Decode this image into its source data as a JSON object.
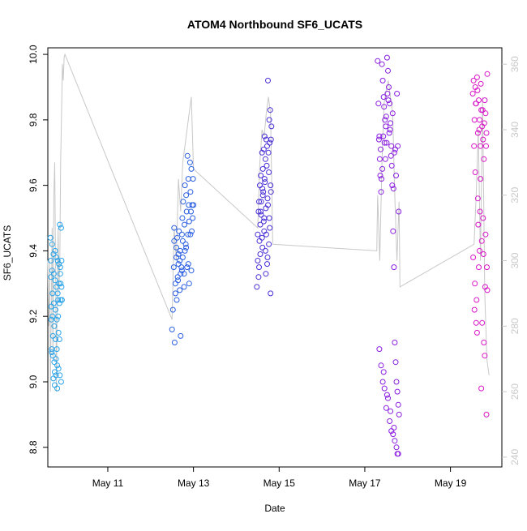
{
  "chart_data": {
    "type": "scatter",
    "title": "ATOM4 Northbound SF6_UCATS",
    "xlabel": "Date",
    "ylabel": "SF6_UCATS",
    "x_ticks": [
      "May 11",
      "May 13",
      "May 15",
      "May 17",
      "May 19"
    ],
    "x_tick_values": [
      11,
      13,
      15,
      17,
      19
    ],
    "xlim": [
      9.6,
      20.2
    ],
    "ylim": [
      8.74,
      10.02
    ],
    "y_ticks": [
      8.8,
      9.0,
      9.2,
      9.4,
      9.6,
      9.8,
      10.0
    ],
    "y_tick_labels": [
      "8.8",
      "9.0",
      "9.2",
      "9.4",
      "9.6",
      "9.8",
      "10.0"
    ],
    "y2_ticks": [
      240,
      260,
      280,
      300,
      320,
      340,
      360
    ],
    "y2_tick_labels": [
      "240",
      "260",
      "280",
      "300",
      "320",
      "340",
      "360"
    ],
    "y2lim": [
      237,
      365
    ],
    "y2_color": "#c8c8c8",
    "line_color": "#c8c8c8",
    "grid": false,
    "series": [
      {
        "color": "#29a3e8",
        "x": [
          9.66,
          9.67,
          9.67,
          9.68,
          9.68,
          9.69,
          9.69,
          9.7,
          9.7,
          9.71,
          9.71,
          9.72,
          9.72,
          9.73,
          9.73,
          9.74,
          9.74,
          9.75,
          9.75,
          9.76,
          9.76,
          9.77,
          9.77,
          9.78,
          9.78,
          9.79,
          9.79,
          9.8,
          9.8,
          9.81,
          9.81,
          9.82,
          9.82,
          9.83,
          9.83,
          9.84,
          9.84,
          9.85,
          9.85,
          9.86,
          9.86,
          9.87,
          9.87,
          9.88,
          9.88,
          9.89,
          9.89,
          9.9,
          9.9,
          9.91,
          9.91,
          9.92,
          9.92,
          9.93
        ],
        "y": [
          9.44,
          9.37,
          9.32,
          9.23,
          9.19,
          9.1,
          9.09,
          9.34,
          9.42,
          9.27,
          9.2,
          9.14,
          9.08,
          9.01,
          9.39,
          9.33,
          9.24,
          9.17,
          9.06,
          9.03,
          8.99,
          9.4,
          9.31,
          9.22,
          9.13,
          9.07,
          9.02,
          9.38,
          9.29,
          9.19,
          9.1,
          9.05,
          8.98,
          9.37,
          9.27,
          9.25,
          9.2,
          9.15,
          9.04,
          9.36,
          9.3,
          9.24,
          9.13,
          9.02,
          9.48,
          9.35,
          9.33,
          9.3,
          9.25,
          9.0,
          9.47,
          9.37,
          9.29,
          9.25
        ]
      },
      {
        "color": "#2a5fe0",
        "x": [
          12.5,
          12.52,
          12.54,
          12.55,
          12.56,
          12.58,
          12.6,
          12.61,
          12.62,
          12.64,
          12.65,
          12.66,
          12.68,
          12.69,
          12.7,
          12.72,
          12.73,
          12.74,
          12.75,
          12.76,
          12.78,
          12.79,
          12.8,
          12.82,
          12.83,
          12.84,
          12.86,
          12.87,
          12.88,
          12.89,
          12.9,
          12.92,
          12.93,
          12.94,
          12.95,
          12.96,
          12.97,
          12.98,
          12.99,
          13.0,
          12.55,
          12.6,
          12.65,
          12.7,
          12.75,
          12.8,
          12.85,
          12.9,
          12.95,
          12.58,
          12.63,
          12.68,
          12.73,
          12.78,
          12.83,
          12.88,
          12.93
        ],
        "y": [
          9.16,
          9.22,
          9.35,
          9.43,
          9.12,
          9.3,
          9.38,
          9.25,
          9.44,
          9.31,
          9.39,
          9.46,
          9.28,
          9.4,
          9.14,
          9.35,
          9.45,
          9.5,
          9.38,
          9.55,
          9.33,
          9.48,
          9.6,
          9.42,
          9.57,
          9.52,
          9.69,
          9.45,
          9.62,
          9.54,
          9.49,
          9.67,
          9.58,
          9.52,
          9.65,
          9.46,
          9.54,
          9.5,
          9.62,
          9.54,
          9.47,
          9.41,
          9.36,
          9.33,
          9.43,
          9.4,
          9.35,
          9.3,
          9.34,
          9.27,
          9.32,
          9.37,
          9.34,
          9.29,
          9.41,
          9.36,
          9.45
        ]
      },
      {
        "color": "#4a2fd6",
        "x": [
          14.48,
          14.5,
          14.52,
          14.53,
          14.55,
          14.56,
          14.57,
          14.58,
          14.6,
          14.61,
          14.62,
          14.63,
          14.64,
          14.65,
          14.66,
          14.67,
          14.68,
          14.69,
          14.7,
          14.71,
          14.72,
          14.73,
          14.74,
          14.75,
          14.76,
          14.77,
          14.78,
          14.79,
          14.8,
          14.81,
          14.82,
          14.5,
          14.54,
          14.58,
          14.62,
          14.66,
          14.7,
          14.74,
          14.78,
          14.52,
          14.56,
          14.6,
          14.64,
          14.68,
          14.72,
          14.76,
          14.8,
          14.53,
          14.57,
          14.61,
          14.65,
          14.69,
          14.73,
          14.77,
          14.81
        ],
        "y": [
          9.29,
          9.45,
          9.52,
          9.35,
          9.6,
          9.48,
          9.63,
          9.55,
          9.7,
          9.41,
          9.65,
          9.58,
          9.71,
          9.5,
          9.75,
          9.61,
          9.68,
          9.53,
          9.74,
          9.66,
          9.72,
          9.56,
          9.92,
          9.7,
          9.64,
          9.8,
          9.73,
          9.83,
          9.6,
          9.74,
          9.78,
          9.37,
          9.43,
          9.51,
          9.57,
          9.62,
          9.45,
          9.54,
          9.47,
          9.32,
          9.39,
          9.44,
          9.49,
          9.4,
          9.36,
          9.42,
          9.27,
          9.55,
          9.52,
          9.59,
          9.46,
          9.33,
          9.38,
          9.5,
          9.58
        ]
      },
      {
        "color": "#8a1ee0",
        "x": [
          17.3,
          17.32,
          17.34,
          17.36,
          17.38,
          17.4,
          17.42,
          17.44,
          17.46,
          17.48,
          17.5,
          17.52,
          17.54,
          17.56,
          17.58,
          17.6,
          17.62,
          17.64,
          17.66,
          17.68,
          17.7,
          17.72,
          17.74,
          17.76,
          17.78,
          17.8,
          17.33,
          17.37,
          17.41,
          17.45,
          17.49,
          17.53,
          17.57,
          17.61,
          17.65,
          17.69,
          17.73,
          17.77,
          17.35,
          17.39,
          17.43,
          17.47,
          17.51,
          17.55,
          17.59,
          17.63,
          17.67,
          17.71,
          17.75,
          17.79,
          17.38,
          17.46,
          17.54,
          17.62,
          17.7,
          17.78,
          17.42,
          17.5,
          17.58,
          17.66,
          17.74,
          17.34,
          17.44,
          17.52,
          17.6,
          17.68,
          17.76
        ],
        "y": [
          9.98,
          9.85,
          9.75,
          9.63,
          9.58,
          9.97,
          9.92,
          9.87,
          9.73,
          9.68,
          9.81,
          9.99,
          9.95,
          9.9,
          9.85,
          9.79,
          9.72,
          9.6,
          9.46,
          9.35,
          9.12,
          9.06,
          9.0,
          8.97,
          8.93,
          8.9,
          9.74,
          9.71,
          9.65,
          9.84,
          9.78,
          9.88,
          9.76,
          9.69,
          9.82,
          9.7,
          9.63,
          9.72,
          9.68,
          9.62,
          9.75,
          9.8,
          9.73,
          9.86,
          9.77,
          9.66,
          9.59,
          9.71,
          9.88,
          9.52,
          9.05,
          8.98,
          8.95,
          8.85,
          8.82,
          8.78,
          9.0,
          8.92,
          8.88,
          8.84,
          8.8,
          9.1,
          9.03,
          8.96,
          8.91,
          8.86,
          8.78
        ]
      },
      {
        "color": "#d916c8",
        "x": [
          19.52,
          19.54,
          19.56,
          19.58,
          19.6,
          19.62,
          19.64,
          19.66,
          19.68,
          19.7,
          19.72,
          19.74,
          19.76,
          19.78,
          19.8,
          19.82,
          19.84,
          19.86,
          19.55,
          19.59,
          19.63,
          19.67,
          19.71,
          19.75,
          19.79,
          19.83,
          19.53,
          19.57,
          19.61,
          19.65,
          19.69,
          19.73,
          19.77,
          19.81,
          19.85,
          19.56,
          19.62,
          19.68,
          19.74,
          19.8,
          19.86,
          19.58,
          19.64,
          19.7,
          19.76,
          19.82,
          19.6,
          19.66,
          19.72,
          19.78,
          19.84
        ],
        "y": [
          9.88,
          9.92,
          9.8,
          9.9,
          9.85,
          9.93,
          9.76,
          9.86,
          9.8,
          9.72,
          9.83,
          9.78,
          9.74,
          9.68,
          9.86,
          9.82,
          9.76,
          9.94,
          9.72,
          9.85,
          9.89,
          9.77,
          9.91,
          9.83,
          9.79,
          9.72,
          9.38,
          9.3,
          9.25,
          9.48,
          9.52,
          9.43,
          9.39,
          9.29,
          9.35,
          9.22,
          9.15,
          9.4,
          9.18,
          9.08,
          9.28,
          9.64,
          9.56,
          9.62,
          9.5,
          9.45,
          9.18,
          9.35,
          8.98,
          9.12,
          8.9
        ]
      }
    ],
    "line": {
      "x": [
        9.6,
        9.62,
        9.64,
        9.66,
        9.68,
        9.7,
        9.72,
        9.74,
        9.76,
        9.78,
        9.8,
        9.82,
        9.84,
        9.86,
        9.88,
        9.9,
        9.92,
        9.94,
        9.96,
        9.98,
        10.0,
        12.5,
        12.55,
        12.6,
        12.65,
        12.7,
        12.75,
        12.8,
        12.85,
        12.9,
        12.95,
        13.0,
        14.5,
        14.55,
        14.6,
        14.65,
        14.7,
        14.75,
        14.8,
        14.85,
        17.28,
        17.3,
        17.35,
        17.4,
        17.45,
        17.5,
        17.55,
        17.6,
        17.65,
        17.7,
        17.75,
        17.8,
        17.82,
        19.55,
        19.6,
        19.65,
        19.7,
        19.75,
        19.8,
        19.85,
        19.9
      ],
      "y": [
        300,
        280,
        300,
        260,
        285,
        310,
        270,
        320,
        330,
        300,
        260,
        290,
        310,
        290,
        300,
        330,
        345,
        360,
        355,
        362,
        363,
        282,
        310,
        300,
        325,
        315,
        330,
        335,
        340,
        345,
        350,
        328,
        310,
        330,
        340,
        338,
        345,
        350,
        345,
        305,
        303,
        320,
        300,
        330,
        348,
        352,
        355,
        350,
        345,
        320,
        300,
        318,
        292,
        305,
        320,
        340,
        300,
        350,
        290,
        270,
        265
      ]
    }
  }
}
